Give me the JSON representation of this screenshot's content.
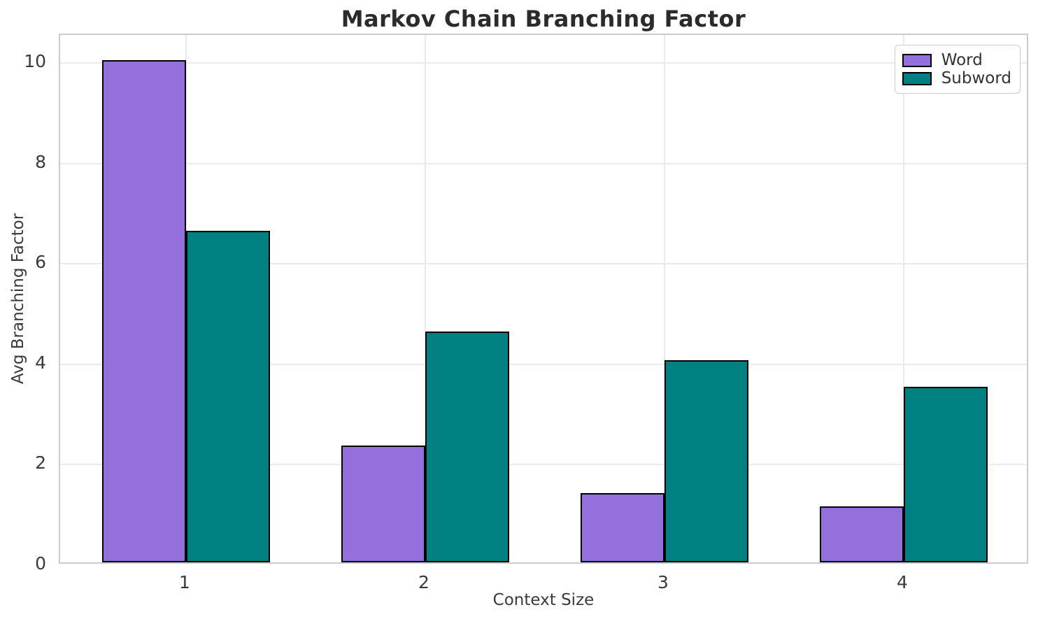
{
  "chart_data": {
    "type": "bar",
    "title": "Markov Chain Branching Factor",
    "xlabel": "Context Size",
    "ylabel": "Avg Branching Factor",
    "categories": [
      "1",
      "2",
      "3",
      "4"
    ],
    "series": [
      {
        "name": "Word",
        "color": "#9370DB",
        "values": [
          10.0,
          2.33,
          1.38,
          1.11
        ]
      },
      {
        "name": "Subword",
        "color": "#008080",
        "values": [
          6.6,
          4.6,
          4.02,
          3.5
        ]
      }
    ],
    "yticks": [
      0,
      2,
      4,
      6,
      8,
      10
    ],
    "ylim": [
      0,
      10.56
    ],
    "grid": true,
    "legend_position": "upper right",
    "colors": {
      "bar_edge": "#000000",
      "grid": "#ebebeb",
      "spine": "#cccccc",
      "background": "#ffffff",
      "tick_text": "#3a3a3a",
      "title_text": "#2b2b2b"
    }
  }
}
